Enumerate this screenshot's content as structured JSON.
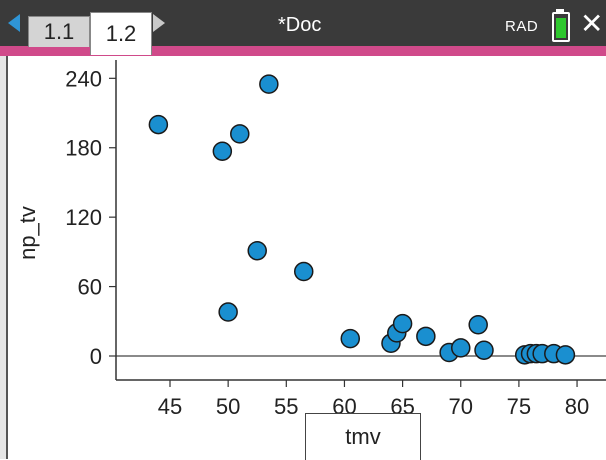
{
  "header": {
    "tabs": [
      {
        "label": "1.1",
        "active": false
      },
      {
        "label": "1.2",
        "active": true
      }
    ],
    "doc_title": "*Doc",
    "angle_mode": "RAD",
    "battery_icon": "battery-icon",
    "close_icon": "close-icon",
    "accent_color": "#d04a8a",
    "nav_color": "#2f95d6"
  },
  "chart_data": {
    "type": "scatter",
    "xlabel": "tmv",
    "ylabel": "np_tv",
    "xlim": [
      40,
      81
    ],
    "ylim": [
      -20,
      250
    ],
    "x_ticks": [
      45,
      50,
      55,
      60,
      65,
      70,
      75,
      80
    ],
    "y_ticks": [
      0,
      60,
      120,
      180,
      240
    ],
    "point_color": "#1a8fd0",
    "series": [
      {
        "points": [
          [
            44,
            200
          ],
          [
            49.5,
            177
          ],
          [
            51,
            192
          ],
          [
            53.5,
            235
          ],
          [
            50,
            38
          ],
          [
            52.5,
            91
          ],
          [
            56.5,
            73
          ],
          [
            60.5,
            15
          ],
          [
            64,
            11
          ],
          [
            64.5,
            20
          ],
          [
            65,
            28
          ],
          [
            67,
            17
          ],
          [
            69,
            3
          ],
          [
            70,
            7
          ],
          [
            71.5,
            27
          ],
          [
            72,
            5
          ],
          [
            75.5,
            1
          ],
          [
            76,
            2
          ],
          [
            76.5,
            2
          ],
          [
            77,
            2
          ],
          [
            78,
            2
          ],
          [
            79,
            1
          ]
        ]
      }
    ]
  }
}
